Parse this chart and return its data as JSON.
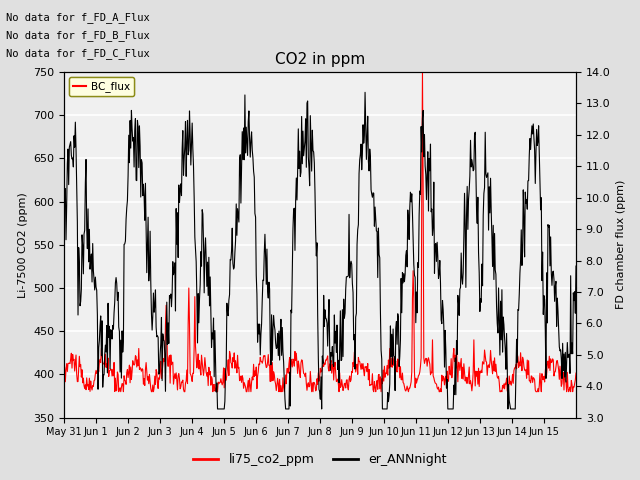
{
  "title": "CO2 in ppm",
  "ylabel_left": "Li-7500 CO2 (ppm)",
  "ylabel_right": "FD chamber flux (ppm)",
  "ylim_left": [
    350,
    750
  ],
  "ylim_right": [
    3.0,
    14.0
  ],
  "yticks_left": [
    350,
    400,
    450,
    500,
    550,
    600,
    650,
    700,
    750
  ],
  "yticks_right": [
    3.0,
    4.0,
    5.0,
    6.0,
    7.0,
    8.0,
    9.0,
    10.0,
    11.0,
    12.0,
    13.0,
    14.0
  ],
  "xticklabels": [
    "May 31",
    "Jun 1",
    "Jun 2",
    "Jun 3",
    "Jun 4",
    "Jun 5",
    "Jun 6",
    "Jun 7",
    "Jun 8",
    "Jun 9",
    "Jun 10",
    "Jun 11",
    "Jun 12",
    "Jun 13",
    "Jun 14",
    "Jun 15"
  ],
  "no_data_texts": [
    "No data for f_FD_A_Flux",
    "No data for f_FD_B_Flux",
    "No data for f_FD_C_Flux"
  ],
  "bc_flux_legend_text": "BC_flux",
  "legend_entries": [
    "li75_co2_ppm",
    "er_ANNnight"
  ],
  "line_colors": [
    "red",
    "black"
  ],
  "background_color": "#e0e0e0",
  "plot_bg_color": "#f0f0f0",
  "grid_color": "white"
}
